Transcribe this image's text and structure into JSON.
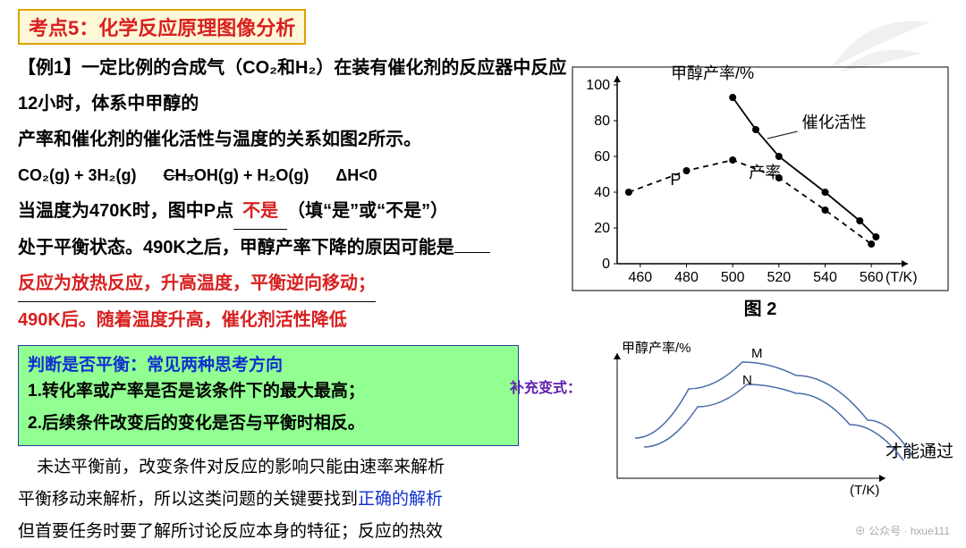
{
  "title": "考点5：化学反应原理图像分析",
  "example_label": "【例1】",
  "intro_line1": "一定比例的合成气（CO₂和H₂）在装有催化剂的反应器中反应12小时，体系中甲醇的",
  "intro_line2": "产率和催化剂的催化活性与温度的关系如图2所示。",
  "equation_l": "CO₂(g) + 3H₂(g)",
  "equation_strike": "CH₃",
  "equation_r": "OH(g) + H₂O(g)",
  "deltaH": "ΔH<0",
  "q1_a": "当温度为470K时，图中P点",
  "q1_ans": "不是",
  "q1_b": "（填“是”或“不是”）",
  "q2_a": "处于平衡状态。490K之后，甲醇产率下降的原因可能是",
  "ans2_line1": "反应为放热反应，升高温度，平衡逆向移动；",
  "ans2_line2": "490K后。随着温度升高，催化剂活性降低",
  "greenbox": {
    "head": "判断是否平衡：常见两种思考方向",
    "l1": "1.转化率或产率是否是该条件下的最大最高；",
    "l2": "2.后续条件改变后的变化是否与平衡时相反。"
  },
  "note_l1_a": "未达平衡前，改变条件对反应的影响只能由速率来解析",
  "note_l1_b": "才能通过",
  "note_l2_a": "平衡移动来解析，所以这类问题的关键要找到",
  "note_l2_b": "正确的解析",
  "note_l3": "但首要任务时要了解所讨论反应本身的特征；反应的热效",
  "supp": "补充变式：",
  "chart1": {
    "ylabel": "甲醇产率/%",
    "xlabel": "(T/K)",
    "caption": "图 2",
    "curve1_label": "催化活性",
    "curve2_label": "产率",
    "p_label": "P",
    "xticks": [
      460,
      480,
      500,
      520,
      540,
      560
    ],
    "yticks": [
      0,
      20,
      40,
      60,
      80,
      100
    ],
    "xlim": [
      450,
      570
    ],
    "ylim": [
      0,
      100
    ],
    "yield_pts": [
      [
        455,
        40
      ],
      [
        480,
        52
      ],
      [
        500,
        58
      ],
      [
        520,
        48
      ],
      [
        540,
        30
      ],
      [
        560,
        11
      ]
    ],
    "activity_pts": [
      [
        500,
        93
      ],
      [
        510,
        75
      ],
      [
        520,
        60
      ],
      [
        540,
        40
      ],
      [
        555,
        24
      ],
      [
        562,
        15
      ]
    ],
    "axis_color": "#000000",
    "grid": false,
    "yield_style": "dashed",
    "activity_style": "solid",
    "marker": "circle",
    "marker_fill": "#000000",
    "marker_r": 4,
    "line_color": "#000000",
    "line_width": 1.8,
    "font_size": 16
  },
  "chart2": {
    "ylabel": "甲醇产率/%",
    "xlabel": "(T/K)",
    "labels": {
      "M": "M",
      "N": "N"
    },
    "line_color": "#4a6aa8",
    "line_width": 1.5,
    "axis_color": "#000000",
    "curveM": [
      [
        20,
        110
      ],
      [
        80,
        55
      ],
      [
        140,
        25
      ],
      [
        200,
        40
      ],
      [
        280,
        90
      ],
      [
        330,
        130
      ]
    ],
    "curveN": [
      [
        30,
        120
      ],
      [
        90,
        75
      ],
      [
        145,
        50
      ],
      [
        200,
        60
      ],
      [
        260,
        95
      ],
      [
        320,
        135
      ]
    ],
    "font_size": 15
  },
  "watermark": "⊕ 公众号 · hxue111"
}
